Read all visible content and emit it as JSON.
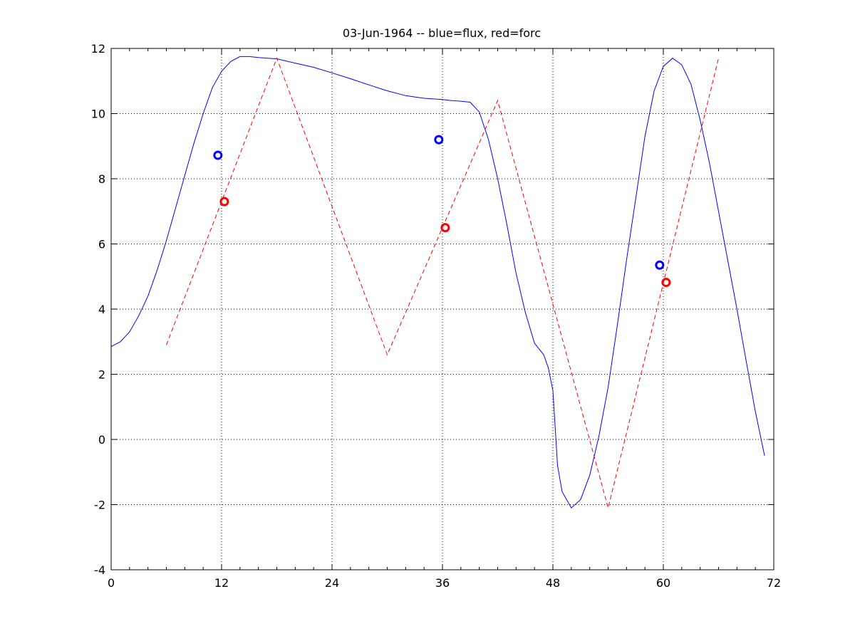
{
  "chart_data": {
    "type": "line",
    "title": "03-Jun-1964 -- blue=flux, red=forc",
    "xlabel": "",
    "ylabel": "",
    "xlim": [
      0,
      72
    ],
    "ylim": [
      -4,
      12
    ],
    "xticks": [
      0,
      12,
      24,
      36,
      48,
      60,
      72
    ],
    "yticks": [
      -4,
      -2,
      0,
      2,
      4,
      6,
      8,
      10,
      12
    ],
    "grid": true,
    "colors": {
      "flux": "#0000ff",
      "forc": "#ff0000",
      "grid": "#000000"
    },
    "series": [
      {
        "style": "solid",
        "color": "#0000ff",
        "x": [
          0,
          1,
          2,
          3,
          4,
          5,
          6,
          7,
          8,
          9,
          10,
          11,
          12,
          13,
          14,
          15,
          16,
          17,
          18,
          20,
          22,
          24,
          26,
          28,
          30,
          32,
          34,
          36,
          37,
          38,
          39,
          40,
          41,
          42,
          43,
          44,
          45,
          46,
          47,
          47.5,
          48,
          48.5,
          49,
          50,
          51,
          52,
          53,
          54,
          55,
          56,
          57,
          58,
          59,
          60,
          61,
          62,
          63,
          64,
          65,
          66,
          67,
          68,
          69,
          70,
          71
        ],
        "y": [
          2.85,
          3.0,
          3.3,
          3.8,
          4.4,
          5.2,
          6.1,
          7.1,
          8.1,
          9.1,
          10.0,
          10.8,
          11.3,
          11.6,
          11.75,
          11.75,
          11.72,
          11.7,
          11.68,
          11.55,
          11.42,
          11.25,
          11.07,
          10.88,
          10.7,
          10.55,
          10.47,
          10.43,
          10.4,
          10.38,
          10.35,
          10.05,
          9.2,
          8.0,
          6.6,
          5.1,
          3.9,
          2.95,
          2.6,
          2.2,
          1.5,
          -0.8,
          -1.6,
          -2.1,
          -1.85,
          -1.1,
          0.1,
          1.6,
          3.5,
          5.5,
          7.4,
          9.3,
          10.7,
          11.45,
          11.7,
          11.5,
          10.9,
          9.8,
          8.5,
          7.0,
          5.5,
          4.0,
          2.4,
          0.85,
          -0.5
        ]
      },
      {
        "style": "dashed",
        "color": "#ff0000",
        "x": [
          6,
          18,
          30,
          42,
          54,
          66
        ],
        "y": [
          2.9,
          11.7,
          2.6,
          10.4,
          -2.1,
          11.7
        ]
      }
    ],
    "markers": [
      {
        "x": 11.6,
        "y": 8.72,
        "color": "#0000ff"
      },
      {
        "x": 12.3,
        "y": 7.3,
        "color": "#ff0000"
      },
      {
        "x": 35.6,
        "y": 9.2,
        "color": "#0000ff"
      },
      {
        "x": 36.3,
        "y": 6.5,
        "color": "#ff0000"
      },
      {
        "x": 59.6,
        "y": 5.35,
        "color": "#0000ff"
      },
      {
        "x": 60.3,
        "y": 4.82,
        "color": "#ff0000"
      }
    ]
  }
}
